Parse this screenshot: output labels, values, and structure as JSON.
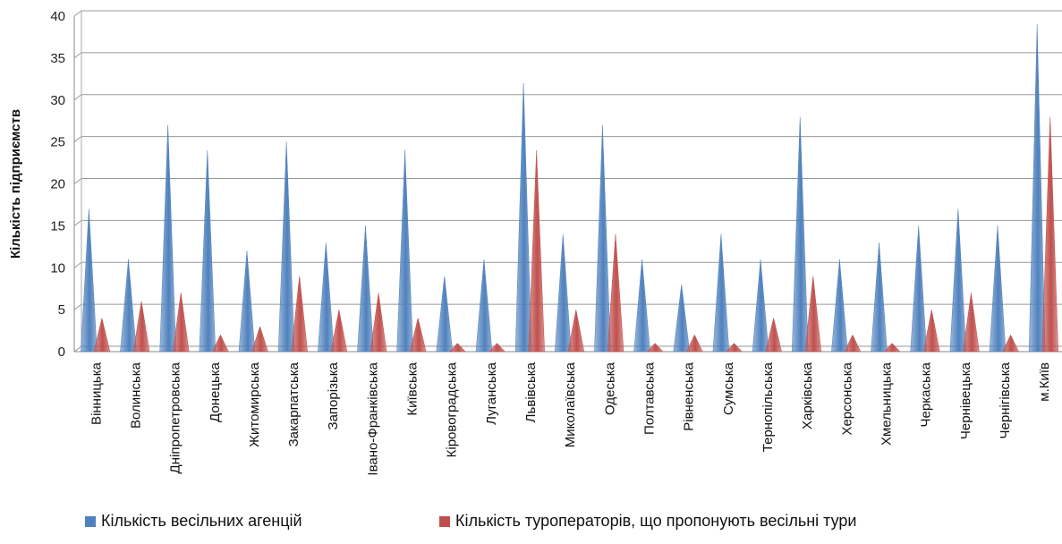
{
  "chart_data": {
    "type": "bar",
    "ylabel": "Кількість підприємств",
    "xlabel": "",
    "ylim": [
      0,
      40
    ],
    "yticks": [
      0,
      5,
      10,
      15,
      20,
      25,
      30,
      35,
      40
    ],
    "grid": true,
    "legend_position": "bottom",
    "categories": [
      "Вінницька",
      "Волинська",
      "Дніпропетровська",
      "Донецька",
      "Житомирська",
      "Закарпатська",
      "Запорізька",
      "Івано-Франківська",
      "Київська",
      "Кіровоградська",
      "Луганська",
      "Львівська",
      "Миколаївська",
      "Одеська",
      "Полтавська",
      "Рівненська",
      "Сумська",
      "Тернопільська",
      "Харківська",
      "Херсонська",
      "Хмельницька",
      "Черкаська",
      "Чернівецька",
      "Чернігівська",
      "м.Київ"
    ],
    "series": [
      {
        "name": "Кількість весільних агенцій",
        "color": "#4f81bd",
        "values": [
          17,
          11,
          27,
          24,
          12,
          25,
          13,
          15,
          24,
          9,
          11,
          32,
          14,
          27,
          11,
          8,
          14,
          11,
          28,
          11,
          13,
          15,
          17,
          15,
          39
        ]
      },
      {
        "name": "Кількість туроператорів, що пропонують весільні тури",
        "color": "#c0504d",
        "values": [
          4,
          6,
          7,
          2,
          3,
          9,
          5,
          7,
          4,
          1,
          1,
          24,
          5,
          14,
          1,
          2,
          1,
          4,
          9,
          2,
          1,
          5,
          7,
          2,
          28
        ]
      }
    ]
  }
}
